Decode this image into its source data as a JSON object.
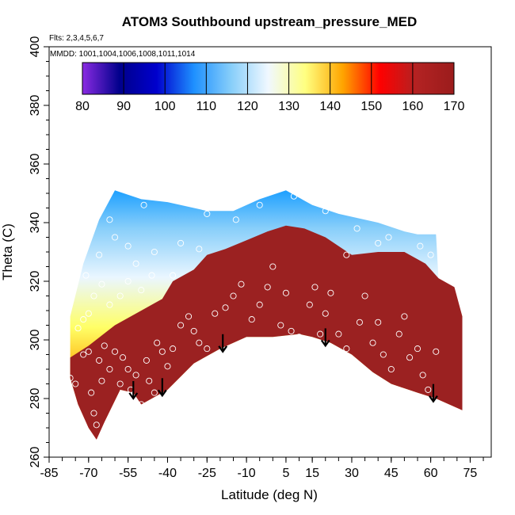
{
  "chart_data": {
    "type": "heatmap",
    "title": "ATOM3 Southbound upstream_pressure_MED",
    "subtitle_flights": "Flts: 2,3,4,5,6,7",
    "subtitle_dates": "MMDD: 1001,1004,1006,1008,1011,1014",
    "xlabel": "Latitude (deg N)",
    "ylabel": "Theta (C)",
    "xlim": [
      -85,
      83
    ],
    "ylim": [
      260,
      400
    ],
    "x_ticks": [
      -85,
      -70,
      -55,
      -40,
      -25,
      -10,
      5,
      15,
      30,
      45,
      60,
      75
    ],
    "y_ticks": [
      260,
      280,
      300,
      320,
      340,
      360,
      380,
      400
    ],
    "colorbar": {
      "range": [
        80,
        170
      ],
      "ticks": [
        80,
        90,
        100,
        110,
        120,
        130,
        140,
        150,
        160,
        170
      ],
      "colors": [
        "#8a2be2",
        "#00008b",
        "#0000cd",
        "#1e90ff",
        "#87cefa",
        "#f0f8ff",
        "#ffff80",
        "#ffa500",
        "#ff0000",
        "#b22222",
        "#9b1c1c"
      ]
    },
    "fill_top": [
      [
        -77,
        308
      ],
      [
        -72,
        326
      ],
      [
        -66,
        341
      ],
      [
        -60,
        351
      ],
      [
        -50,
        348
      ],
      [
        -40,
        347
      ],
      [
        -25,
        344
      ],
      [
        -15,
        344
      ],
      [
        -5,
        348
      ],
      [
        5,
        351
      ],
      [
        15,
        346
      ],
      [
        25,
        343
      ],
      [
        40,
        340
      ],
      [
        50,
        337
      ],
      [
        55,
        336
      ],
      [
        62,
        336
      ],
      [
        63,
        320
      ],
      [
        69,
        317
      ],
      [
        72,
        308
      ]
    ],
    "fill_bottom": [
      [
        -77,
        287
      ],
      [
        -74,
        278
      ],
      [
        -70,
        270
      ],
      [
        -67,
        266
      ],
      [
        -64,
        272
      ],
      [
        -58,
        283
      ],
      [
        -53,
        282
      ],
      [
        -50,
        278
      ],
      [
        -40,
        283
      ],
      [
        -30,
        292
      ],
      [
        -20,
        297
      ],
      [
        -10,
        301
      ],
      [
        0,
        301
      ],
      [
        10,
        302
      ],
      [
        15,
        301
      ],
      [
        22,
        299
      ],
      [
        30,
        295
      ],
      [
        38,
        289
      ],
      [
        45,
        285
      ],
      [
        55,
        282
      ],
      [
        62,
        280
      ],
      [
        72,
        276
      ]
    ],
    "dark_boundary": [
      [
        -77,
        294
      ],
      [
        -70,
        298
      ],
      [
        -60,
        305
      ],
      [
        -50,
        310
      ],
      [
        -42,
        314
      ],
      [
        -38,
        320
      ],
      [
        -30,
        324
      ],
      [
        -25,
        329
      ],
      [
        -18,
        331
      ],
      [
        -10,
        334
      ],
      [
        -2,
        337
      ],
      [
        5,
        339
      ],
      [
        12,
        338
      ],
      [
        20,
        335
      ],
      [
        30,
        329
      ],
      [
        40,
        330
      ],
      [
        50,
        330
      ],
      [
        58,
        326
      ],
      [
        63,
        321
      ],
      [
        69,
        318
      ],
      [
        72,
        308
      ]
    ],
    "obs_points": [
      [
        -77,
        287
      ],
      [
        -75,
        285
      ],
      [
        -76,
        279
      ],
      [
        -74,
        274
      ],
      [
        -72,
        295
      ],
      [
        -70,
        296
      ],
      [
        -69,
        282
      ],
      [
        -68,
        275
      ],
      [
        -67,
        271
      ],
      [
        -66,
        293
      ],
      [
        -65,
        286
      ],
      [
        -64,
        298
      ],
      [
        -62,
        290
      ],
      [
        -60,
        296
      ],
      [
        -58,
        285
      ],
      [
        -57,
        294
      ],
      [
        -56,
        281
      ],
      [
        -55,
        290
      ],
      [
        -54,
        283
      ],
      [
        -52,
        288
      ],
      [
        -50,
        278
      ],
      [
        -48,
        293
      ],
      [
        -47,
        286
      ],
      [
        -45,
        282
      ],
      [
        -44,
        299
      ],
      [
        -42,
        296
      ],
      [
        -40,
        291
      ],
      [
        -38,
        297
      ],
      [
        -35,
        305
      ],
      [
        -32,
        308
      ],
      [
        -30,
        303
      ],
      [
        -28,
        299
      ],
      [
        -25,
        297
      ],
      [
        -22,
        309
      ],
      [
        -18,
        311
      ],
      [
        -15,
        315
      ],
      [
        -12,
        319
      ],
      [
        -8,
        307
      ],
      [
        -5,
        312
      ],
      [
        -2,
        318
      ],
      [
        0,
        325
      ],
      [
        3,
        305
      ],
      [
        5,
        316
      ],
      [
        7,
        303
      ],
      [
        10,
        301
      ],
      [
        12,
        296
      ],
      [
        14,
        312
      ],
      [
        16,
        318
      ],
      [
        18,
        302
      ],
      [
        20,
        309
      ],
      [
        22,
        316
      ],
      [
        25,
        302
      ],
      [
        28,
        297
      ],
      [
        30,
        291
      ],
      [
        33,
        306
      ],
      [
        35,
        315
      ],
      [
        38,
        299
      ],
      [
        40,
        306
      ],
      [
        42,
        295
      ],
      [
        45,
        290
      ],
      [
        48,
        302
      ],
      [
        50,
        308
      ],
      [
        52,
        294
      ],
      [
        55,
        297
      ],
      [
        57,
        288
      ],
      [
        59,
        283
      ],
      [
        62,
        296
      ],
      [
        -74,
        304
      ],
      [
        -72,
        307
      ],
      [
        -70,
        309
      ],
      [
        -68,
        315
      ],
      [
        -65,
        319
      ],
      [
        -62,
        312
      ],
      [
        -58,
        315
      ],
      [
        -55,
        320
      ],
      [
        -50,
        317
      ],
      [
        -46,
        322
      ],
      [
        -71,
        322
      ],
      [
        -66,
        329
      ],
      [
        -60,
        335
      ],
      [
        -55,
        332
      ],
      [
        -52,
        326
      ],
      [
        -45,
        330
      ],
      [
        -35,
        333
      ],
      [
        -25,
        343
      ],
      [
        -14,
        341
      ],
      [
        -5,
        346
      ],
      [
        8,
        349
      ],
      [
        20,
        344
      ],
      [
        32,
        338
      ],
      [
        44,
        335
      ],
      [
        56,
        332
      ],
      [
        60,
        329
      ],
      [
        -38,
        322
      ],
      [
        -28,
        331
      ],
      [
        28,
        329
      ],
      [
        40,
        333
      ],
      [
        -62,
        341
      ],
      [
        -49,
        346
      ]
    ],
    "arrows": [
      {
        "lat": -53,
        "theta": 280
      },
      {
        "lat": -42,
        "theta": 281
      },
      {
        "lat": -19,
        "theta": 296
      },
      {
        "lat": 20,
        "theta": 298
      },
      {
        "lat": 61,
        "theta": 279
      }
    ]
  }
}
